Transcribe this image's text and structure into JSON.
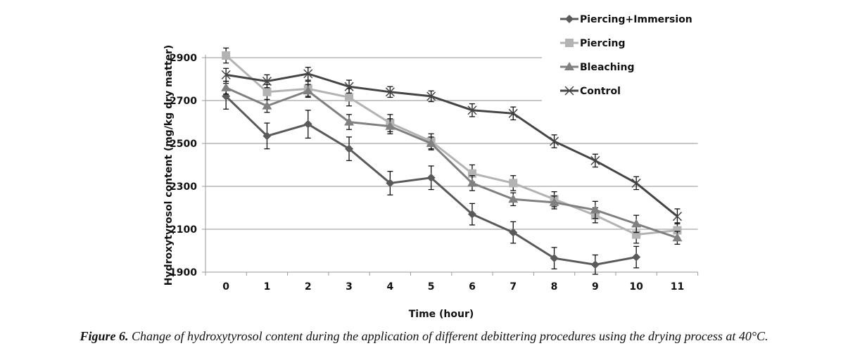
{
  "chart_data": {
    "type": "line",
    "title": "",
    "xlabel": "Time (hour)",
    "ylabel": "Hydroxytyrosol content (mg/kg dry matter)",
    "x": [
      0,
      1,
      2,
      3,
      4,
      5,
      6,
      7,
      8,
      9,
      10,
      11
    ],
    "x_tick_labels": [
      "0",
      "1",
      "2",
      "3",
      "4",
      "5",
      "6",
      "7",
      "8",
      "9",
      "10",
      "11"
    ],
    "ylim": [
      1900,
      2900
    ],
    "y_ticks": [
      1900,
      2100,
      2300,
      2500,
      2700,
      2900
    ],
    "y_tick_labels": [
      "1900",
      "2100",
      "2300",
      "2500",
      "2700",
      "2900"
    ],
    "grid": true,
    "legend_position": "top-right",
    "series": [
      {
        "name": "Piercing+Immersion",
        "marker": "diamond",
        "color": "#5a5a5a",
        "values": [
          2720,
          2535,
          2590,
          2475,
          2315,
          2340,
          2170,
          2085,
          1965,
          1935,
          1970,
          null
        ],
        "errors": [
          60,
          60,
          65,
          55,
          55,
          55,
          50,
          50,
          50,
          45,
          50,
          null
        ]
      },
      {
        "name": "Piercing",
        "marker": "square",
        "color": "#b3b3b3",
        "values": [
          2910,
          2740,
          2755,
          2715,
          2595,
          2510,
          2360,
          2315,
          2240,
          2165,
          2075,
          2095
        ],
        "errors": [
          35,
          35,
          35,
          40,
          40,
          35,
          40,
          35,
          35,
          35,
          40,
          35
        ]
      },
      {
        "name": "Bleaching",
        "marker": "triangle",
        "color": "#808080",
        "values": [
          2760,
          2675,
          2745,
          2600,
          2580,
          2500,
          2315,
          2240,
          2225,
          2190,
          2125,
          2060
        ],
        "errors": [
          30,
          30,
          30,
          35,
          35,
          30,
          35,
          30,
          30,
          40,
          40,
          30
        ]
      },
      {
        "name": "Control",
        "marker": "x",
        "color": "#454545",
        "values": [
          2820,
          2790,
          2825,
          2765,
          2740,
          2720,
          2655,
          2640,
          2510,
          2420,
          2315,
          2160
        ],
        "errors": [
          30,
          30,
          30,
          30,
          25,
          25,
          30,
          30,
          30,
          30,
          30,
          35
        ]
      }
    ]
  },
  "caption": {
    "label": "Figure 6.",
    "text": " Change of hydroxytyrosol content during the application of different debittering procedures using the drying process at 40°C."
  }
}
